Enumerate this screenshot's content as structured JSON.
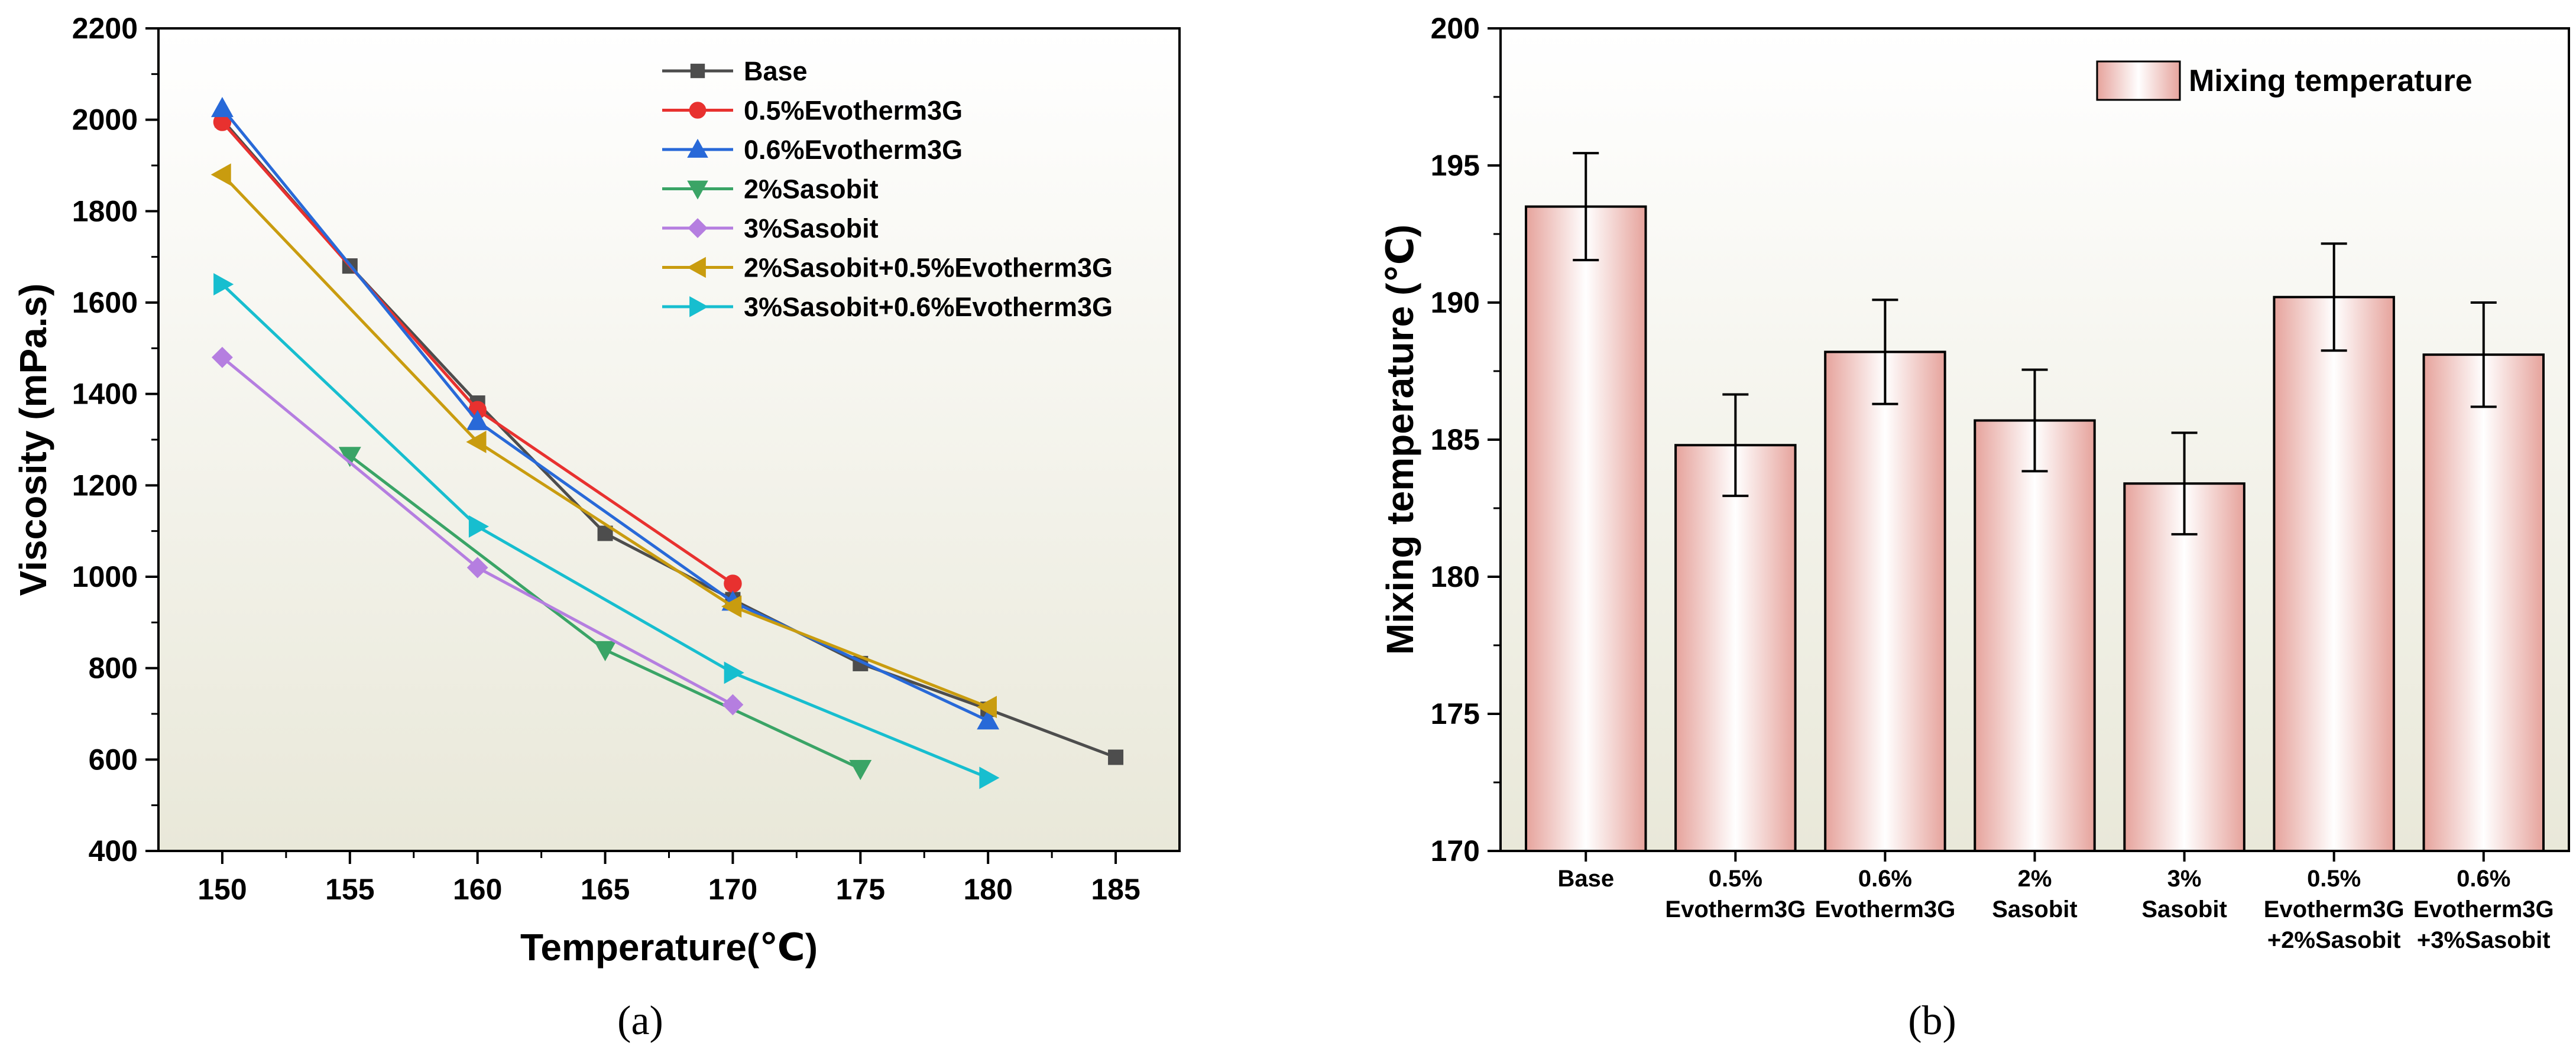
{
  "chart_data": [
    {
      "type": "line",
      "panel_label": "(a)",
      "xlabel": "Temperature(℃)",
      "ylabel": "Viscosity (mPa.s)",
      "xlim": [
        147.5,
        187.5
      ],
      "ylim": [
        400,
        2200
      ],
      "x_ticks": [
        150,
        155,
        160,
        165,
        170,
        175,
        180,
        185
      ],
      "y_ticks": [
        400,
        600,
        800,
        1000,
        1200,
        1400,
        1600,
        1800,
        2000,
        2200
      ],
      "background": "gradient",
      "legend_position": "top-right",
      "series": [
        {
          "name": "Base",
          "color": "#4d4d4d",
          "marker": "square",
          "x": [
            150,
            155,
            160,
            165,
            170,
            175,
            180,
            185
          ],
          "y": [
            2000,
            1680,
            1380,
            1095,
            950,
            810,
            710,
            605
          ]
        },
        {
          "name": "0.5%Evotherm3G",
          "color": "#e8312f",
          "marker": "circle",
          "x": [
            150,
            160,
            170
          ],
          "y": [
            1995,
            1365,
            985
          ]
        },
        {
          "name": "0.6%Evotherm3G",
          "color": "#2869d8",
          "marker": "triangle-up",
          "x": [
            150,
            160,
            170,
            180
          ],
          "y": [
            2025,
            1340,
            945,
            685
          ]
        },
        {
          "name": "2%Sasobit",
          "color": "#3aa466",
          "marker": "triangle-down",
          "x": [
            155,
            165,
            175
          ],
          "y": [
            1265,
            840,
            580
          ]
        },
        {
          "name": "3%Sasobit",
          "color": "#b57ee0",
          "marker": "diamond",
          "x": [
            150,
            160,
            170
          ],
          "y": [
            1480,
            1020,
            720
          ]
        },
        {
          "name": "2%Sasobit+0.5%Evotherm3G",
          "color": "#c99c0f",
          "marker": "triangle-left",
          "x": [
            150,
            160,
            170,
            180
          ],
          "y": [
            1880,
            1295,
            935,
            715
          ]
        },
        {
          "name": "3%Sasobit+0.6%Evotherm3G",
          "color": "#17becf",
          "marker": "triangle-right",
          "x": [
            150,
            160,
            170,
            180
          ],
          "y": [
            1640,
            1110,
            790,
            560
          ]
        }
      ]
    },
    {
      "type": "bar",
      "panel_label": "(b)",
      "ylabel": "Mixing temperature (℃)",
      "xlabel": "",
      "ylim": [
        170,
        200
      ],
      "y_ticks": [
        170,
        175,
        180,
        185,
        190,
        195,
        200
      ],
      "legend_position": "top-right",
      "categories": [
        [
          "Base"
        ],
        [
          "0.5%",
          "Evotherm3G"
        ],
        [
          "0.6%",
          "Evotherm3G"
        ],
        [
          "2%",
          "Sasobit"
        ],
        [
          "3%",
          "Sasobit"
        ],
        [
          "0.5%",
          "Evotherm3G",
          "+2%Sasobit"
        ],
        [
          "0.6%",
          "Evotherm3G",
          "+3%Sasobit"
        ]
      ],
      "series": [
        {
          "name": "Mixing temperature",
          "color": "#e6a39c",
          "values": [
            193.5,
            184.8,
            188.2,
            185.7,
            183.4,
            190.2,
            188.1
          ],
          "errors": [
            1.95,
            1.85,
            1.9,
            1.85,
            1.85,
            1.95,
            1.9
          ]
        }
      ]
    }
  ]
}
